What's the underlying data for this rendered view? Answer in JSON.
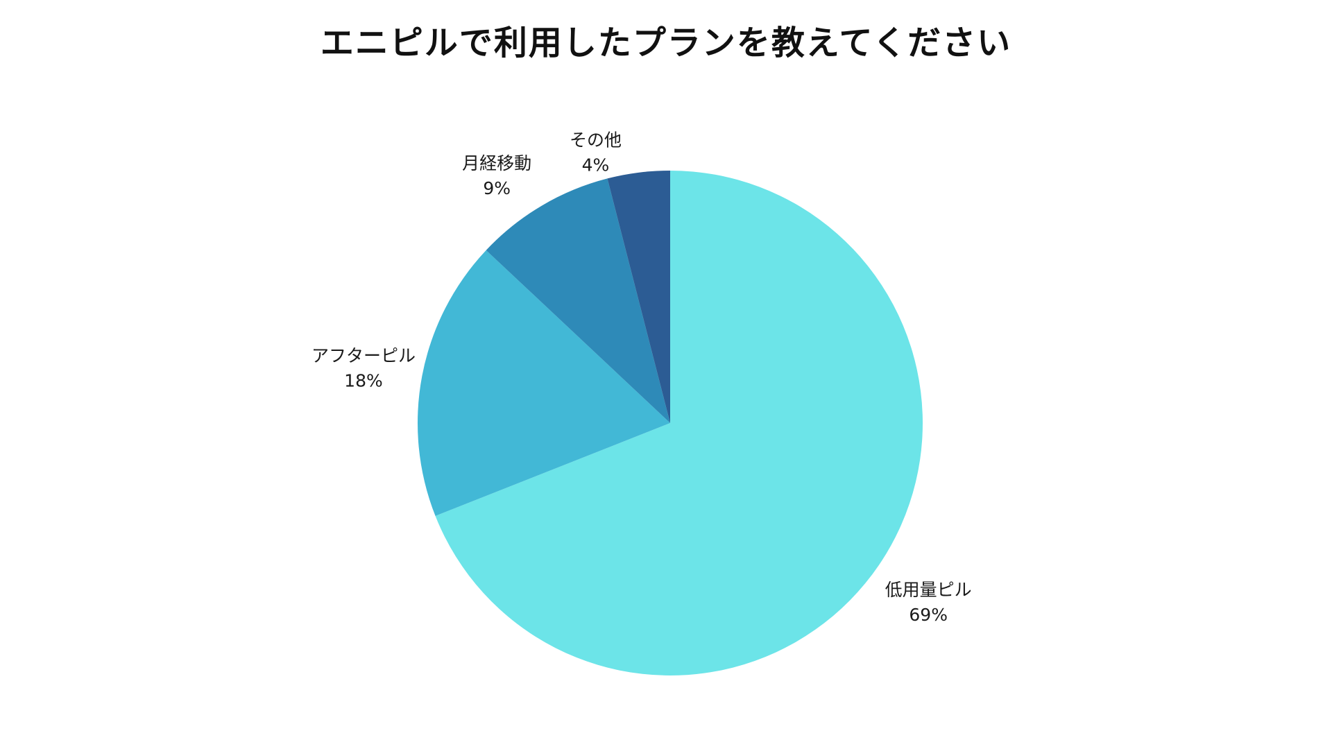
{
  "chart_data": {
    "type": "pie",
    "title": "エニピルで利用したプランを教えてください",
    "slices": [
      {
        "label": "低用量ピル",
        "value": 69,
        "value_label": "69%",
        "color": "#6ce4e8"
      },
      {
        "label": "アフターピル",
        "value": 18,
        "value_label": "18%",
        "color": "#42b8d6"
      },
      {
        "label": "月経移動",
        "value": 9,
        "value_label": "9%",
        "color": "#2e8ab8"
      },
      {
        "label": "その他",
        "value": 4,
        "value_label": "4%",
        "color": "#2c5c94"
      }
    ],
    "start": "12 o'clock",
    "direction": "clockwise",
    "legend": "none"
  }
}
